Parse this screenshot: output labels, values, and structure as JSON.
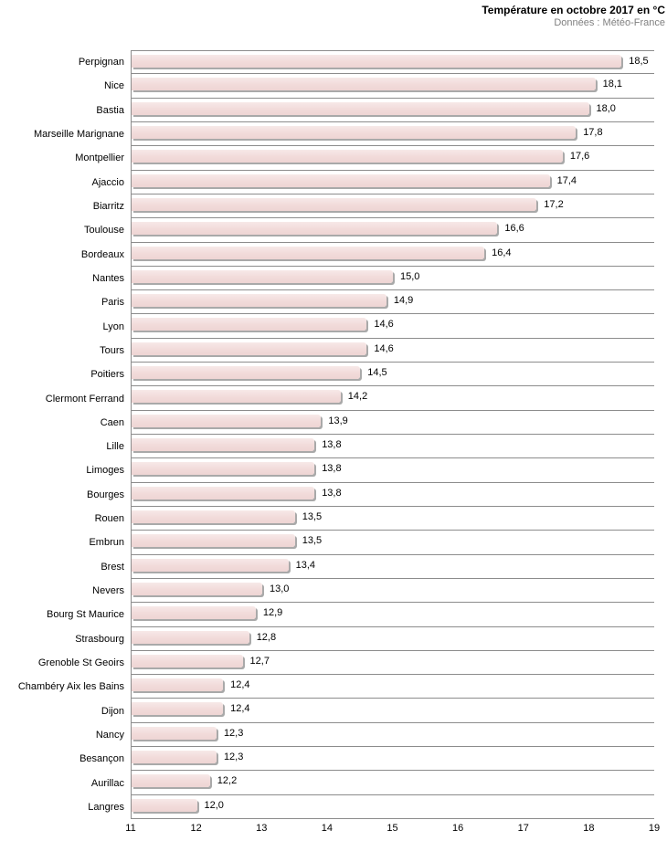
{
  "header": {
    "title": "Température en octobre 2017 en °C",
    "subtitle": "Données : Météo-France"
  },
  "chart_data": {
    "type": "bar",
    "orientation": "horizontal",
    "title": "Température en octobre 2017 en °C",
    "subtitle": "Données : Météo-France",
    "categories": [
      "Perpignan",
      "Nice",
      "Bastia",
      "Marseille Marignane",
      "Montpellier",
      "Ajaccio",
      "Biarritz",
      "Toulouse",
      "Bordeaux",
      "Nantes",
      "Paris",
      "Lyon",
      "Tours",
      "Poitiers",
      "Clermont Ferrand",
      "Caen",
      "Lille",
      "Limoges",
      "Bourges",
      "Rouen",
      "Embrun",
      "Brest",
      "Nevers",
      "Bourg St Maurice",
      "Strasbourg",
      "Grenoble St Geoirs",
      "Chambéry Aix les Bains",
      "Dijon",
      "Nancy",
      "Besançon",
      "Aurillac",
      "Langres"
    ],
    "values": [
      18.5,
      18.1,
      18.0,
      17.8,
      17.6,
      17.4,
      17.2,
      16.6,
      16.4,
      15.0,
      14.9,
      14.6,
      14.6,
      14.5,
      14.2,
      13.9,
      13.8,
      13.8,
      13.8,
      13.5,
      13.5,
      13.4,
      13.0,
      12.9,
      12.8,
      12.7,
      12.4,
      12.4,
      12.3,
      12.3,
      12.2,
      12.0
    ],
    "value_labels": [
      "18,5",
      "18,1",
      "18,0",
      "17,8",
      "17,6",
      "17,4",
      "17,2",
      "16,6",
      "16,4",
      "15,0",
      "14,9",
      "14,6",
      "14,6",
      "14,5",
      "14,2",
      "13,9",
      "13,8",
      "13,8",
      "13,8",
      "13,5",
      "13,5",
      "13,4",
      "13,0",
      "12,9",
      "12,8",
      "12,7",
      "12,4",
      "12,4",
      "12,3",
      "12,3",
      "12,2",
      "12,0"
    ],
    "xlim": [
      11,
      19
    ],
    "x_ticks": [
      "11",
      "12",
      "13",
      "14",
      "15",
      "16",
      "17",
      "18",
      "19"
    ],
    "xlabel": "",
    "ylabel": "",
    "legend": "none",
    "grid": "horizontal row dividers only",
    "colors": {
      "bar_fill": "#f2dcdb",
      "bar_shadow": "#a9a9a9",
      "grid_line": "#8c8c8c",
      "label_text": "#000000",
      "subtitle_text": "#808080"
    }
  }
}
